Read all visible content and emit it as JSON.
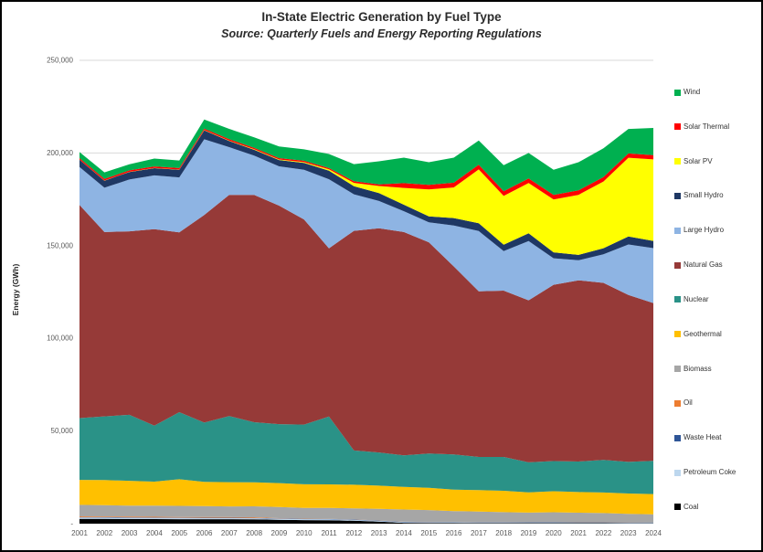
{
  "chart_data": {
    "type": "area",
    "stacked": true,
    "title": "In-State Electric Generation by Fuel Type",
    "subtitle": "Source: Quarterly Fuels and Energy Reporting Regulations",
    "ylabel": "Energy (GWh)",
    "ylim": [
      0,
      250000
    ],
    "grid": true,
    "legend_position": "right",
    "gridline_color": "#d9d9d9",
    "tick_label_color": "#595959",
    "x": [
      "2001",
      "2002",
      "2003",
      "2004",
      "2005",
      "2006",
      "2007",
      "2008",
      "2009",
      "2010",
      "2011",
      "2012",
      "2013",
      "2014",
      "2015",
      "2016",
      "2017",
      "2018",
      "2019",
      "2020",
      "2021",
      "2022",
      "2023",
      "2024"
    ],
    "y_ticks": [
      {
        "value": 0,
        "label": "-"
      },
      {
        "value": 50000,
        "label": "50,000"
      },
      {
        "value": 100000,
        "label": "100,000"
      },
      {
        "value": 150000,
        "label": "150,000"
      },
      {
        "value": 200000,
        "label": "200,000"
      },
      {
        "value": 250000,
        "label": "250,000"
      }
    ],
    "series": [
      {
        "name": "Coal",
        "color": "#000000",
        "values": [
          2600,
          2550,
          2500,
          2450,
          2400,
          2400,
          2400,
          2350,
          2100,
          1900,
          1800,
          1600,
          1100,
          450,
          350,
          350,
          320,
          300,
          280,
          270,
          250,
          240,
          220,
          200
        ]
      },
      {
        "name": "Petroleum Coke",
        "color": "#BDD7EE",
        "values": [
          700,
          700,
          680,
          660,
          640,
          620,
          600,
          580,
          560,
          540,
          520,
          420,
          390,
          360,
          340,
          320,
          300,
          290,
          280,
          270,
          260,
          250,
          240,
          230
        ]
      },
      {
        "name": "Waste Heat",
        "color": "#2E5597",
        "values": [
          200,
          200,
          200,
          200,
          200,
          200,
          200,
          200,
          200,
          190,
          190,
          190,
          190,
          190,
          190,
          190,
          190,
          190,
          190,
          190,
          190,
          190,
          190,
          190
        ]
      },
      {
        "name": "Oil",
        "color": "#ED7D31",
        "values": [
          440,
          420,
          400,
          380,
          360,
          350,
          340,
          330,
          100,
          90,
          80,
          70,
          60,
          50,
          45,
          45,
          40,
          40,
          40,
          35,
          35,
          35,
          35,
          35
        ]
      },
      {
        "name": "Biomass",
        "color": "#A6A6A6",
        "values": [
          6200,
          6100,
          6000,
          6000,
          6000,
          5900,
          5800,
          5900,
          6000,
          5800,
          5900,
          6000,
          6300,
          6600,
          6400,
          5900,
          5700,
          5400,
          5200,
          5400,
          5200,
          5000,
          4600,
          4400
        ]
      },
      {
        "name": "Geothermal",
        "color": "#FFC000",
        "values": [
          13500,
          13550,
          13350,
          13000,
          14380,
          13090,
          13030,
          12910,
          12910,
          12740,
          12690,
          12730,
          12490,
          12190,
          11990,
          11580,
          11530,
          11530,
          10940,
          11350,
          11120,
          11090,
          11000,
          10900
        ]
      },
      {
        "name": "Nuclear",
        "color": "#2A9287",
        "values": [
          33290,
          34350,
          35590,
          30240,
          36160,
          31960,
          35700,
          32480,
          31810,
          32210,
          36670,
          18490,
          17860,
          17030,
          18530,
          18930,
          17930,
          18270,
          16160,
          16280,
          16480,
          17610,
          17070,
          17900
        ]
      },
      {
        "name": "Natural Gas",
        "color": "#963A38",
        "values": [
          115000,
          99500,
          99000,
          106000,
          97000,
          112000,
          119300,
          122600,
          117900,
          110700,
          90700,
          118500,
          121000,
          120500,
          114000,
          101500,
          89400,
          89700,
          87400,
          95100,
          97800,
          95500,
          90000,
          85200
        ]
      },
      {
        "name": "Large Hydro",
        "color": "#8EB4E3",
        "values": [
          20500,
          23900,
          28000,
          29000,
          29700,
          40900,
          25800,
          21200,
          21200,
          26800,
          37300,
          19700,
          14700,
          11200,
          10800,
          22100,
          32500,
          21300,
          32000,
          14300,
          10800,
          15400,
          27300,
          29600
        ]
      },
      {
        "name": "Small Hydro",
        "color": "#1F3864",
        "values": [
          3900,
          3800,
          4000,
          3900,
          4100,
          4800,
          3300,
          3200,
          3400,
          3700,
          4600,
          4400,
          4300,
          3500,
          3200,
          4000,
          4200,
          3500,
          4200,
          3200,
          2900,
          3300,
          4300,
          3900
        ]
      },
      {
        "name": "Solar PV",
        "color": "#FFFF00",
        "values": [
          100,
          100,
          100,
          100,
          150,
          150,
          200,
          250,
          300,
          400,
          700,
          1800,
          3800,
          9100,
          14500,
          16500,
          29000,
          26300,
          27100,
          28500,
          32400,
          36000,
          42500,
          44000
        ]
      },
      {
        "name": "Solar Thermal",
        "color": "#FF0000",
        "values": [
          830,
          820,
          810,
          800,
          790,
          780,
          770,
          760,
          750,
          740,
          730,
          860,
          900,
          2550,
          2500,
          2550,
          2600,
          2550,
          2500,
          2450,
          2400,
          2350,
          2300,
          2250
        ]
      },
      {
        "name": "Wind",
        "color": "#00B050",
        "values": [
          3240,
          3550,
          3320,
          4260,
          4080,
          4900,
          5570,
          5720,
          6250,
          6170,
          7600,
          9240,
          12400,
          13780,
          12190,
          13500,
          13000,
          14080,
          13710,
          13610,
          15170,
          15550,
          13200,
          14700
        ]
      }
    ]
  }
}
